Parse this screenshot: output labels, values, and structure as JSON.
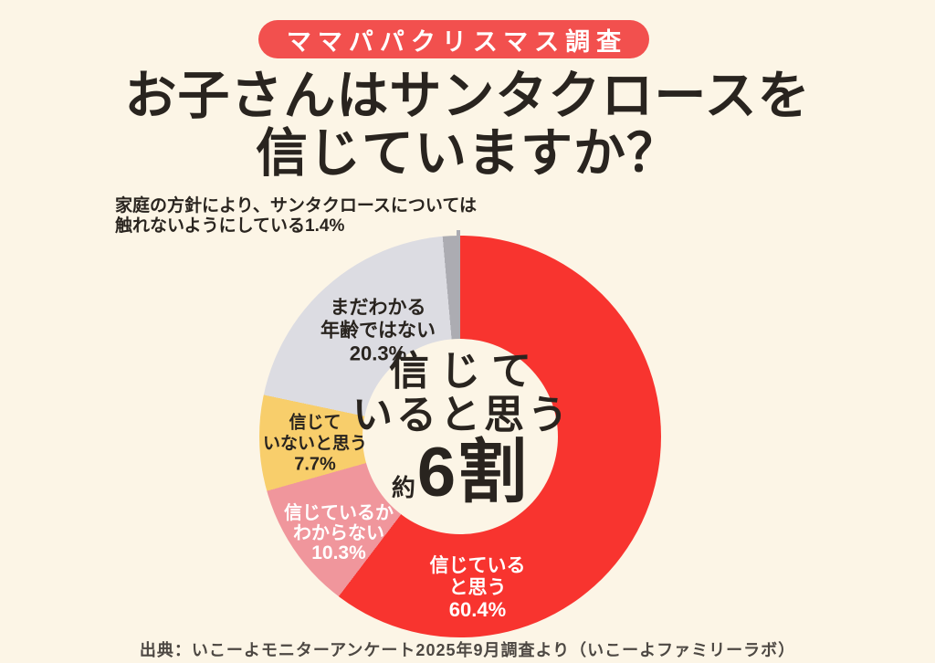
{
  "page": {
    "background_color": "#FCF5E6"
  },
  "badge": {
    "label": "ママパパクリスマス調査",
    "bg_color": "#F2504E",
    "text_color": "#FFFFFF"
  },
  "title": {
    "line1": "お子さんはサンタクロースを",
    "line2": "信じていますか？",
    "color": "#29241F"
  },
  "annotation": {
    "line1": "家庭の方針により、サンタクロースについては",
    "line2": "触れないようにしている1.4%",
    "leader_line_color": "#ACACB2"
  },
  "chart_data": {
    "type": "pie",
    "subtype": "donut",
    "title": "お子さんはサンタクロースを信じていますか？",
    "direction": "clockwise",
    "start_angle_deg": 0,
    "hole_color": "#FCF5E6",
    "segments": [
      {
        "label": "信じていると思う",
        "label_lines": [
          "信じている",
          "と思う"
        ],
        "value_pct": 60.4,
        "pct_label": "60.4%",
        "color": "#F8342F",
        "label_color": "#FFFFFF"
      },
      {
        "label": "信じているかわからない",
        "label_lines": [
          "信じているか",
          "わからない"
        ],
        "value_pct": 10.3,
        "pct_label": "10.3%",
        "color": "#F0969C",
        "label_color": "#FFFFFF"
      },
      {
        "label": "信じていないと思う",
        "label_lines": [
          "信じて",
          "いないと思う"
        ],
        "value_pct": 7.7,
        "pct_label": "7.7%",
        "color": "#F8CE6B",
        "label_color": "#29241F"
      },
      {
        "label": "まだわかる年齢ではない",
        "label_lines": [
          "まだわかる",
          "年齢ではない"
        ],
        "value_pct": 20.3,
        "pct_label": "20.3%",
        "color": "#DCDCE2",
        "label_color": "#29241F"
      },
      {
        "label": "家庭の方針により、サンタクロースについては触れないようにしている",
        "label_lines": [],
        "value_pct": 1.4,
        "pct_label": "1.4%",
        "color": "#ACACB2",
        "label_color": "#29241F",
        "callout": true
      }
    ],
    "center_label": {
      "line1": "信じて",
      "line2": "いると思う",
      "prefix": "約",
      "big": "6割"
    }
  },
  "footer": {
    "text": "出典：いこーよモニターアンケート2025年9月調査より（いこーよファミリーラボ）"
  }
}
